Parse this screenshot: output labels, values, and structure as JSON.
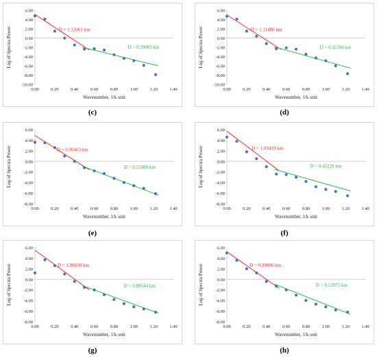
{
  "colors": {
    "points": "#4472c4",
    "fit1": "#ff2a2a",
    "fit2": "#2fb84a",
    "axis": "#d0d0d0",
    "text": "#222222"
  },
  "chart_data": [
    {
      "type": "scatter",
      "label": "(c)",
      "xlabel": "Wavenumber, 1/k unit",
      "ylabel": "Log of Spectra Power",
      "xlim": [
        0,
        1.4
      ],
      "ylim": [
        -10,
        6
      ],
      "xticks": [
        "0.00",
        "0.20",
        "0.40",
        "0.60",
        "0.80",
        "1.00",
        "1.20",
        "1.40"
      ],
      "yticks": [
        "6.00",
        "4.00",
        "2.00",
        "0.00",
        "-2.00",
        "-4.00",
        "-6.00",
        "-8.00",
        "-10.00"
      ],
      "points": [
        [
          0.0,
          4.8
        ],
        [
          0.1,
          4.1
        ],
        [
          0.2,
          1.5
        ],
        [
          0.3,
          0.0
        ],
        [
          0.4,
          -1.5
        ],
        [
          0.5,
          -2.4
        ],
        [
          0.6,
          -2.3
        ],
        [
          0.7,
          -2.6
        ],
        [
          0.8,
          -3.6
        ],
        [
          0.9,
          -4.4
        ],
        [
          1.0,
          -4.9
        ],
        [
          1.1,
          -5.9
        ],
        [
          1.22,
          -7.9
        ]
      ],
      "fit1": {
        "line": [
          [
            0.0,
            5.1
          ],
          [
            0.55,
            -2.6
          ]
        ],
        "text": "D = 1.12061 km",
        "at": [
          0.24,
          1.5
        ]
      },
      "fit2": {
        "line": [
          [
            0.48,
            -2.0
          ],
          [
            1.25,
            -6.0
          ]
        ],
        "text": "D = 0.39005 km",
        "at": [
          0.94,
          -2.3
        ]
      }
    },
    {
      "type": "scatter",
      "label": "(d)",
      "xlabel": "Wavenumber, 1/k unit",
      "ylabel": "Log of Spectra Power",
      "xlim": [
        0,
        1.4
      ],
      "ylim": [
        -10,
        6
      ],
      "xticks": [
        "0.00",
        "0.20",
        "0.40",
        "0.60",
        "0.80",
        "1.00",
        "1.20",
        "1.40"
      ],
      "yticks": [
        "6.00",
        "4.00",
        "2.00",
        "0.00",
        "-2.00",
        "-4.00",
        "-6.00",
        "-8.00",
        "-10.00"
      ],
      "points": [
        [
          0.0,
          4.7
        ],
        [
          0.1,
          4.1
        ],
        [
          0.2,
          1.5
        ],
        [
          0.3,
          0.4
        ],
        [
          0.4,
          -1.2
        ],
        [
          0.5,
          -2.3
        ],
        [
          0.6,
          -2.1
        ],
        [
          0.7,
          -2.4
        ],
        [
          0.8,
          -3.5
        ],
        [
          0.9,
          -4.3
        ],
        [
          1.0,
          -4.9
        ],
        [
          1.1,
          -6.0
        ],
        [
          1.22,
          -7.7
        ]
      ],
      "fit1": {
        "line": [
          [
            0.0,
            5.0
          ],
          [
            0.55,
            -2.5
          ]
        ],
        "text": "D = 1.11480 km",
        "at": [
          0.24,
          1.5
        ]
      },
      "fit2": {
        "line": [
          [
            0.48,
            -1.9
          ],
          [
            1.25,
            -6.5
          ]
        ],
        "text": "D = 0.45780 km",
        "at": [
          0.94,
          -2.4
        ]
      }
    },
    {
      "type": "scatter",
      "label": "(e)",
      "xlabel": "Wavenumber, 1/k unit",
      "ylabel": "Log of Spectra Power",
      "xlim": [
        0,
        1.4
      ],
      "ylim": [
        -8,
        6
      ],
      "xticks": [
        "0.00",
        "0.20",
        "0.40",
        "0.60",
        "0.80",
        "1.00",
        "1.20",
        "1.40"
      ],
      "yticks": [
        "6.00",
        "4.00",
        "2.00",
        "0.00",
        "-2.00",
        "-4.00",
        "-6.00",
        "-8.00"
      ],
      "points": [
        [
          0.0,
          3.6
        ],
        [
          0.1,
          3.5
        ],
        [
          0.2,
          2.6
        ],
        [
          0.3,
          1.0
        ],
        [
          0.4,
          0.0
        ],
        [
          0.5,
          -1.2
        ],
        [
          0.6,
          -1.8
        ],
        [
          0.7,
          -2.3
        ],
        [
          0.8,
          -3.2
        ],
        [
          0.9,
          -4.0
        ],
        [
          1.0,
          -4.6
        ],
        [
          1.1,
          -5.1
        ],
        [
          1.22,
          -6.1
        ]
      ],
      "fit1": {
        "line": [
          [
            0.0,
            4.9
          ],
          [
            0.55,
            -1.6
          ]
        ],
        "text": "D = 0.96463 km",
        "at": [
          0.22,
          1.9
        ]
      },
      "fit2": {
        "line": [
          [
            0.48,
            -0.9
          ],
          [
            1.25,
            -6.4
          ]
        ],
        "text": "D = 0.51980 km",
        "at": [
          0.9,
          -1.4
        ]
      }
    },
    {
      "type": "scatter",
      "label": "(f)",
      "xlabel": "Wavenumber, 1/k unit",
      "ylabel": "Log of Spectra Power",
      "xlim": [
        0,
        1.4
      ],
      "ylim": [
        -8,
        6
      ],
      "xticks": [
        "0.00",
        "0.20",
        "0.40",
        "0.60",
        "0.80",
        "1.00",
        "1.20",
        "1.40"
      ],
      "yticks": [
        "6.00",
        "4.00",
        "2.00",
        "0.00",
        "-2.00",
        "-4.00",
        "-6.00",
        "-8.00"
      ],
      "points": [
        [
          0.0,
          4.6
        ],
        [
          0.1,
          3.8
        ],
        [
          0.2,
          1.8
        ],
        [
          0.3,
          0.5
        ],
        [
          0.4,
          -1.0
        ],
        [
          0.5,
          -2.4
        ],
        [
          0.6,
          -2.5
        ],
        [
          0.7,
          -3.0
        ],
        [
          0.8,
          -3.8
        ],
        [
          0.9,
          -4.8
        ],
        [
          1.0,
          -5.3
        ],
        [
          1.1,
          -5.7
        ],
        [
          1.22,
          -6.5
        ]
      ],
      "fit1": {
        "line": [
          [
            0.0,
            5.7
          ],
          [
            0.53,
            -1.8
          ]
        ],
        "text": "D = 1.09419 km",
        "at": [
          0.25,
          2.2
        ]
      },
      "fit2": {
        "line": [
          [
            0.48,
            -1.5
          ],
          [
            1.25,
            -5.6
          ]
        ],
        "text": "D = 0.45220 km",
        "at": [
          0.84,
          -1.2
        ]
      }
    },
    {
      "type": "scatter",
      "label": "(g)",
      "xlabel": "Wavenumber, 1/k unit",
      "ylabel": "Log of Spectra Power",
      "xlim": [
        0,
        1.4
      ],
      "ylim": [
        -8,
        6
      ],
      "xticks": [
        "0.00",
        "0.20",
        "0.40",
        "0.60",
        "0.80",
        "1.00",
        "1.20",
        "1.40"
      ],
      "yticks": [
        "6.00",
        "4.00",
        "2.00",
        "0.00",
        "-2.00",
        "-4.00",
        "-6.00",
        "-8.00"
      ],
      "points": [
        [
          0.0,
          1.2
        ],
        [
          0.1,
          3.7
        ],
        [
          0.2,
          2.6
        ],
        [
          0.3,
          1.0
        ],
        [
          0.4,
          -0.4
        ],
        [
          0.5,
          -1.5
        ],
        [
          0.6,
          -2.0
        ],
        [
          0.7,
          -2.9
        ],
        [
          0.8,
          -3.8
        ],
        [
          0.9,
          -4.6
        ],
        [
          1.0,
          -5.2
        ],
        [
          1.1,
          -5.6
        ],
        [
          1.22,
          -6.2
        ]
      ],
      "fit1": {
        "line": [
          [
            0.0,
            5.5
          ],
          [
            0.55,
            -2.0
          ]
        ],
        "text": "D = 1.08109 km",
        "at": [
          0.23,
          2.4
        ]
      },
      "fit2": {
        "line": [
          [
            0.48,
            -1.2
          ],
          [
            1.25,
            -6.4
          ]
        ],
        "text": "D = 0.88544 km",
        "at": [
          0.9,
          -1.5
        ]
      }
    },
    {
      "type": "scatter",
      "label": "(h)",
      "xlabel": "Wavenumber, 1/k unit",
      "ylabel": "Log of Spectra Power",
      "xlim": [
        0,
        1.4
      ],
      "ylim": [
        -8,
        6
      ],
      "xticks": [
        "0.00",
        "0.20",
        "0.40",
        "0.60",
        "0.80",
        "1.00",
        "1.20",
        "1.40"
      ],
      "yticks": [
        "6.00",
        "4.00",
        "2.00",
        "0.00",
        "-2.00",
        "-4.00",
        "-6.00",
        "-8.00"
      ],
      "points": [
        [
          0.0,
          5.0
        ],
        [
          0.1,
          3.6
        ],
        [
          0.2,
          2.0
        ],
        [
          0.3,
          1.2
        ],
        [
          0.4,
          -0.4
        ],
        [
          0.5,
          -1.3
        ],
        [
          0.6,
          -2.0
        ],
        [
          0.7,
          -3.0
        ],
        [
          0.8,
          -4.0
        ],
        [
          0.9,
          -4.7
        ],
        [
          1.0,
          -5.2
        ],
        [
          1.1,
          -5.8
        ],
        [
          1.22,
          -6.2
        ]
      ],
      "fit1": {
        "line": [
          [
            0.0,
            5.2
          ],
          [
            0.53,
            -1.7
          ]
        ],
        "text": "D = 0.99006 km",
        "at": [
          0.23,
          2.4
        ]
      },
      "fit2": {
        "line": [
          [
            0.48,
            -0.9
          ],
          [
            1.25,
            -6.6
          ]
        ],
        "text": "D = 0.53975 km",
        "at": [
          0.9,
          -1.4
        ]
      }
    }
  ]
}
